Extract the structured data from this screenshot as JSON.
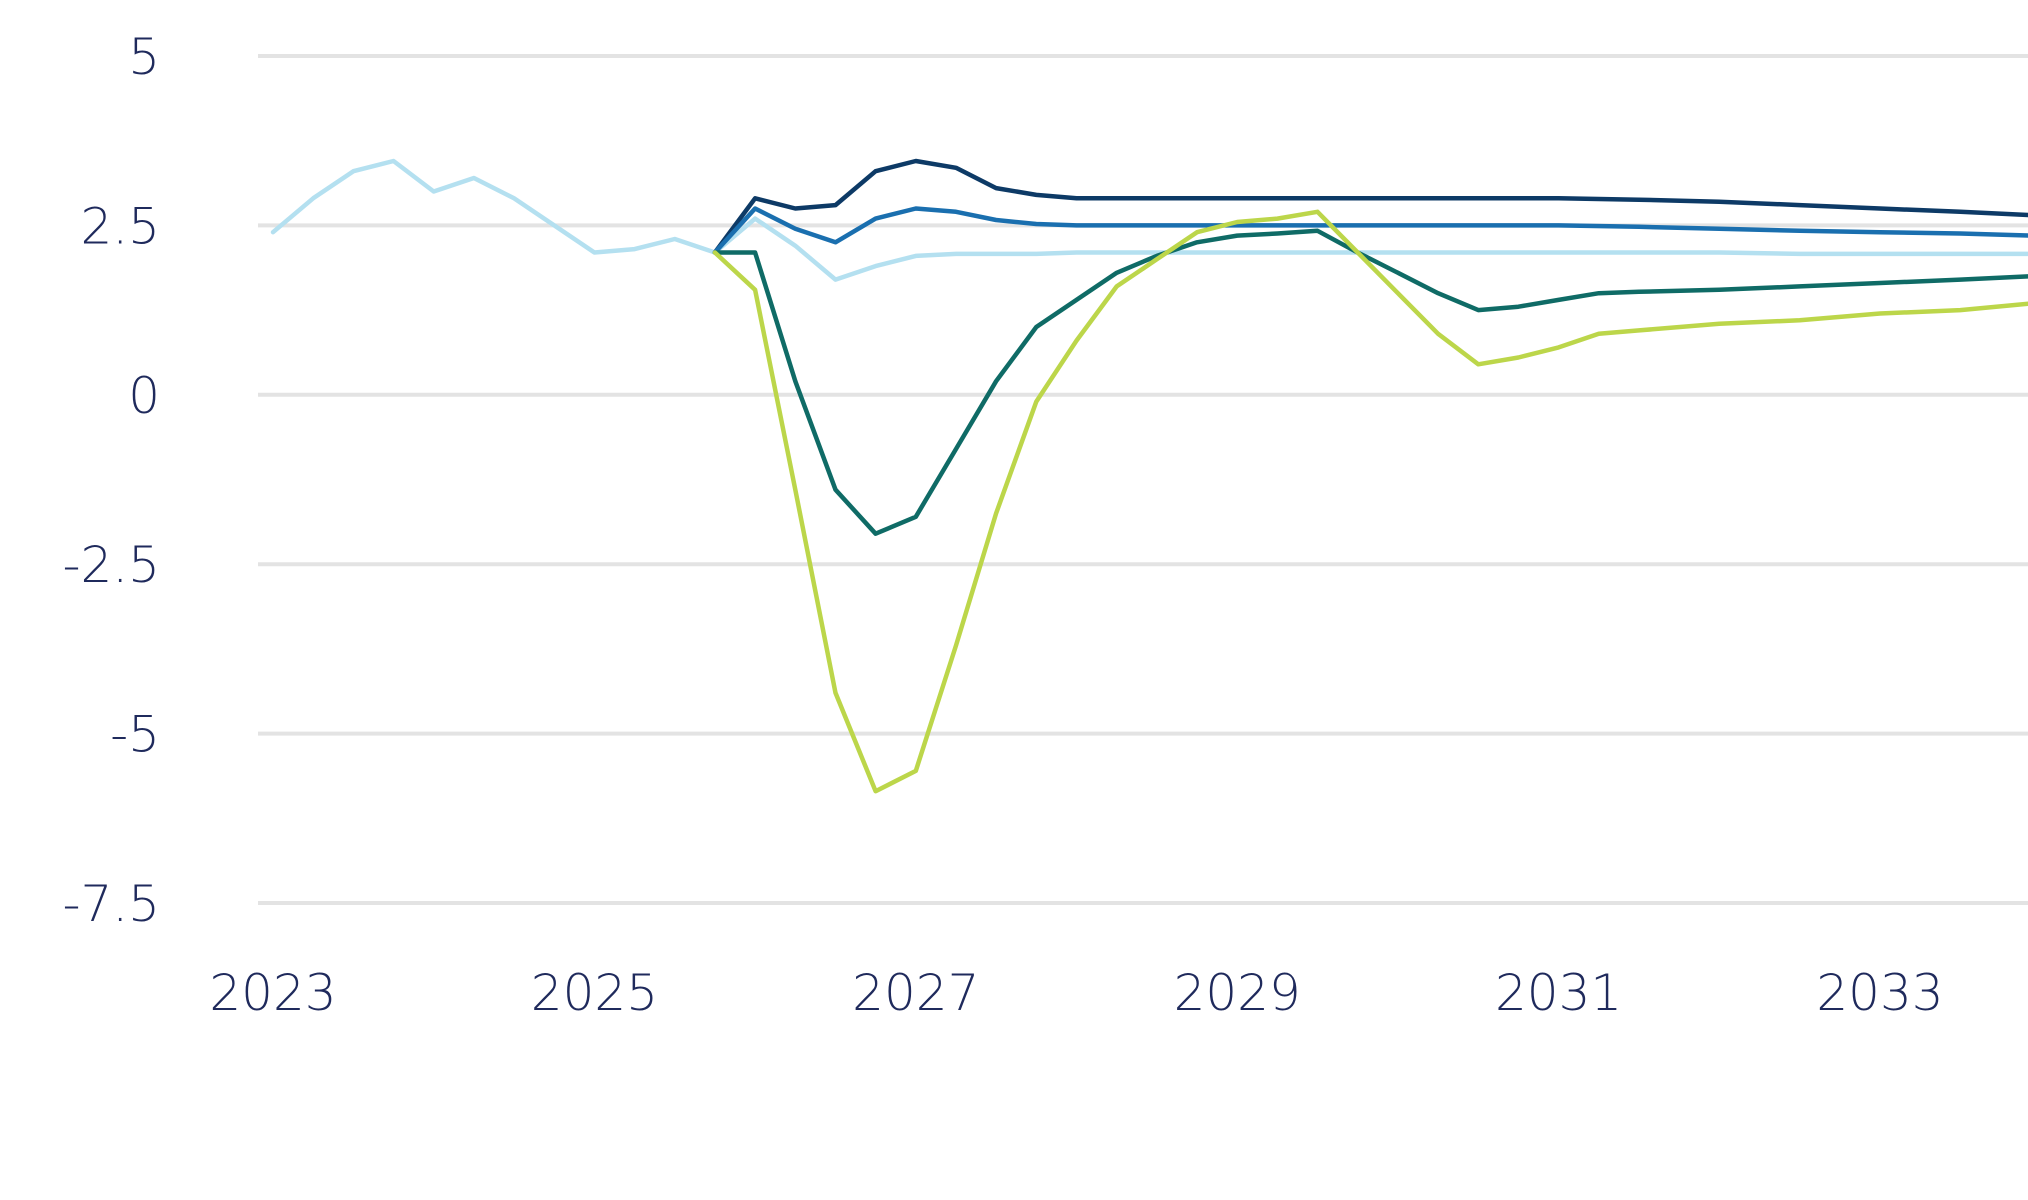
{
  "chart_data": {
    "type": "line",
    "title": "",
    "xlabel": "",
    "ylabel": "",
    "xlim": [
      2022.95,
      2033.95
    ],
    "ylim": [
      -8.6,
      5.6
    ],
    "y_ticks": [
      5,
      2.5,
      0,
      -2.5,
      -5,
      -7.5
    ],
    "y_tick_labels": [
      "5",
      "2.5",
      "0",
      "-2.5",
      "-5",
      "-7.5"
    ],
    "x_ticks": [
      2023,
      2025,
      2027,
      2029,
      2031,
      2033
    ],
    "x_tick_labels": [
      "2023",
      "2025",
      "2027",
      "2029",
      "2031",
      "2033"
    ],
    "grid": "horizontal",
    "legend": "none",
    "series": [
      {
        "color": "#b4e0f0",
        "x": [
          2023.0,
          2023.25,
          2023.5,
          2023.75,
          2024.0,
          2024.25,
          2024.5,
          2024.75,
          2025.0,
          2025.25,
          2025.5,
          2025.75,
          2026.0,
          2026.25,
          2026.5,
          2026.75,
          2027.0,
          2027.25,
          2027.5,
          2027.75,
          2028.0,
          2028.5,
          2029.0,
          2029.5,
          2030.0,
          2030.5,
          2031.0,
          2031.5,
          2032.0,
          2032.5,
          2033.0,
          2033.5,
          2033.95
        ],
        "y": [
          2.4,
          2.9,
          3.3,
          3.45,
          3.0,
          3.2,
          2.9,
          2.5,
          2.1,
          2.15,
          2.3,
          2.1,
          2.6,
          2.2,
          1.7,
          1.9,
          2.05,
          2.08,
          2.08,
          2.08,
          2.1,
          2.1,
          2.1,
          2.1,
          2.1,
          2.1,
          2.1,
          2.1,
          2.1,
          2.08,
          2.08,
          2.08,
          2.08
        ]
      },
      {
        "color": "#0d3a66",
        "x": [
          2025.75,
          2026.0,
          2026.25,
          2026.5,
          2026.75,
          2027.0,
          2027.25,
          2027.5,
          2027.75,
          2028.0,
          2028.5,
          2029.0,
          2029.5,
          2030.0,
          2030.5,
          2031.0,
          2031.5,
          2032.0,
          2032.5,
          2033.0,
          2033.5,
          2033.95
        ],
        "y": [
          2.1,
          2.9,
          2.75,
          2.8,
          3.3,
          3.45,
          3.35,
          3.05,
          2.95,
          2.9,
          2.9,
          2.9,
          2.9,
          2.9,
          2.9,
          2.9,
          2.88,
          2.85,
          2.8,
          2.75,
          2.7,
          2.65
        ]
      },
      {
        "color": "#1a6faf",
        "x": [
          2025.75,
          2026.0,
          2026.25,
          2026.5,
          2026.75,
          2027.0,
          2027.25,
          2027.5,
          2027.75,
          2028.0,
          2028.5,
          2029.0,
          2029.5,
          2030.0,
          2030.5,
          2031.0,
          2031.5,
          2032.0,
          2032.5,
          2033.0,
          2033.5,
          2033.95
        ],
        "y": [
          2.1,
          2.75,
          2.45,
          2.25,
          2.6,
          2.75,
          2.7,
          2.58,
          2.52,
          2.5,
          2.5,
          2.5,
          2.5,
          2.5,
          2.5,
          2.5,
          2.48,
          2.45,
          2.42,
          2.4,
          2.38,
          2.35
        ]
      },
      {
        "color": "#0f6b66",
        "x": [
          2025.75,
          2026.0,
          2026.25,
          2026.5,
          2026.75,
          2027.0,
          2027.25,
          2027.5,
          2027.75,
          2028.0,
          2028.25,
          2028.5,
          2028.75,
          2029.0,
          2029.25,
          2029.5,
          2029.75,
          2030.0,
          2030.25,
          2030.5,
          2030.75,
          2031.0,
          2031.25,
          2031.5,
          2032.0,
          2032.5,
          2033.0,
          2033.5,
          2033.95
        ],
        "y": [
          2.1,
          2.1,
          0.2,
          -1.4,
          -2.05,
          -1.8,
          -0.8,
          0.2,
          1.0,
          1.4,
          1.8,
          2.05,
          2.25,
          2.35,
          2.38,
          2.42,
          2.1,
          1.8,
          1.5,
          1.25,
          1.3,
          1.4,
          1.5,
          1.52,
          1.55,
          1.6,
          1.65,
          1.7,
          1.75
        ]
      },
      {
        "color": "#bcd64a",
        "x": [
          2025.75,
          2026.0,
          2026.25,
          2026.5,
          2026.75,
          2027.0,
          2027.25,
          2027.5,
          2027.75,
          2028.0,
          2028.25,
          2028.5,
          2028.75,
          2029.0,
          2029.25,
          2029.5,
          2029.75,
          2030.0,
          2030.25,
          2030.5,
          2030.75,
          2031.0,
          2031.25,
          2031.5,
          2032.0,
          2032.5,
          2033.0,
          2033.5,
          2033.95
        ],
        "y": [
          2.1,
          1.55,
          -1.4,
          -4.4,
          -5.85,
          -5.55,
          -3.7,
          -1.75,
          -0.1,
          0.8,
          1.6,
          2.0,
          2.4,
          2.55,
          2.6,
          2.7,
          2.1,
          1.5,
          0.9,
          0.45,
          0.55,
          0.7,
          0.9,
          0.95,
          1.05,
          1.1,
          1.2,
          1.25,
          1.35
        ]
      }
    ]
  }
}
